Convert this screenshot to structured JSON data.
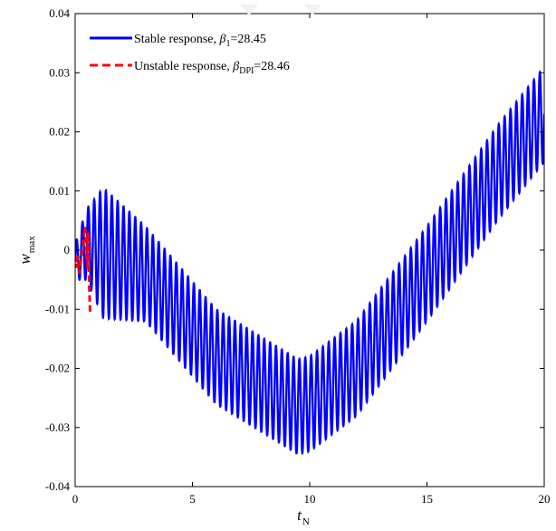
{
  "chart_data": {
    "type": "line",
    "title": "",
    "xlabel": {
      "main": "t",
      "sub": "N"
    },
    "ylabel": {
      "main": "w",
      "sub": "max"
    },
    "xlim": [
      0,
      20
    ],
    "ylim": [
      -0.04,
      0.04
    ],
    "xticks": [
      0,
      5,
      10,
      15,
      20
    ],
    "xtick_labels": [
      "0",
      "5",
      "10",
      "15",
      "20"
    ],
    "yticks": [
      -0.04,
      -0.03,
      -0.02,
      -0.01,
      0,
      0.01,
      0.02,
      0.03,
      0.04
    ],
    "ytick_labels": [
      "-0.04",
      "-0.03",
      "-0.02",
      "-0.01",
      "0",
      "0.01",
      "0.02",
      "0.03",
      "0.04"
    ],
    "grid": false,
    "legend_position": "top-left",
    "series": [
      {
        "name": "Stable response, β1=28.45",
        "legend_prefix": "Stable response, ",
        "legend_symbol": "β",
        "legend_sub": "1",
        "legend_value": "=28.45",
        "color": "#0000ff",
        "style": "solid",
        "x_range": [
          0,
          20
        ],
        "oscillation_period": 0.25,
        "envelope": {
          "x": [
            0,
            0.5,
            1.2,
            3,
            6,
            9.5,
            10,
            12,
            15,
            18,
            20
          ],
          "center": [
            -0.002,
            0.001,
            -0.0005,
            -0.004,
            -0.018,
            -0.0265,
            -0.026,
            -0.02,
            -0.004,
            0.013,
            0.023
          ],
          "amplitude": [
            0.003,
            0.006,
            0.011,
            0.008,
            0.008,
            0.008,
            0.008,
            0.008,
            0.008,
            0.008,
            0.008
          ]
        }
      },
      {
        "name": "Unstable response, βDPI=28.46",
        "legend_prefix": "Unstable response, ",
        "legend_symbol": "β",
        "legend_sub": "DPI",
        "legend_value": "=28.46",
        "color": "#ff0000",
        "style": "dashed",
        "x": [
          0,
          0.06,
          0.12,
          0.18,
          0.24,
          0.3,
          0.36,
          0.42,
          0.48,
          0.52,
          0.56,
          0.6,
          0.64
        ],
        "y": [
          -0.001,
          -0.003,
          -0.001,
          -0.004,
          -0.002,
          -0.0005,
          0.002,
          0.004,
          0.001,
          -0.003,
          0.003,
          -0.006,
          -0.0105
        ]
      }
    ]
  }
}
